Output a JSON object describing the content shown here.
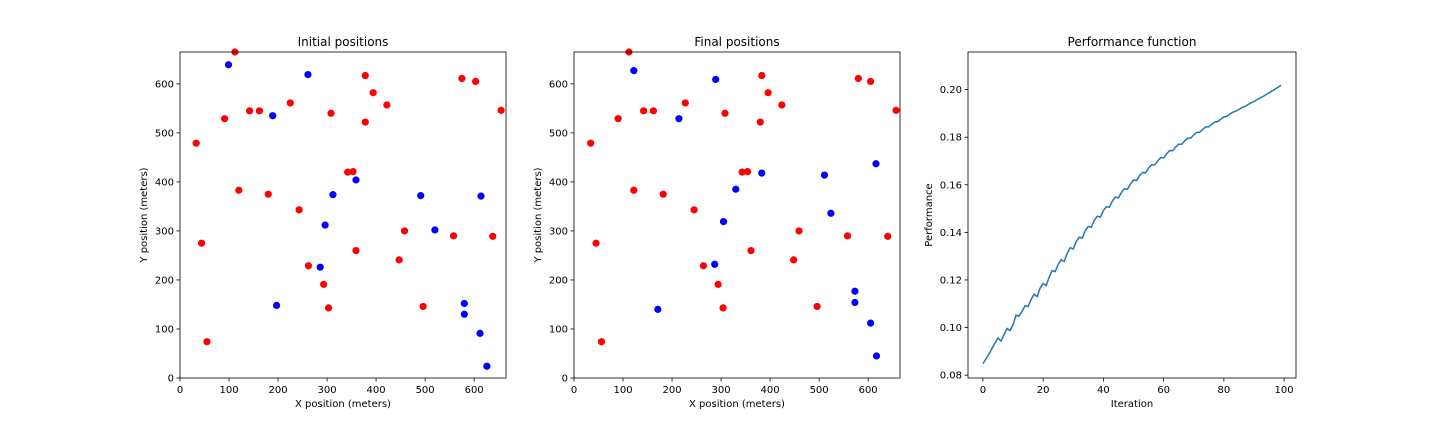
{
  "chart_data": [
    {
      "type": "scatter",
      "title": "Initial positions",
      "xlabel": "X position (meters)",
      "ylabel": "Y position (meters)",
      "xlim": [
        0,
        665
      ],
      "ylim": [
        0,
        665
      ],
      "xticks": [
        0,
        100,
        200,
        300,
        400,
        500,
        600
      ],
      "yticks": [
        0,
        100,
        200,
        300,
        400,
        500,
        600
      ],
      "grid": false,
      "series": [
        {
          "color": "#ff0000",
          "points": [
            [
              112,
              665
            ],
            [
              378,
              617
            ],
            [
              575,
              611
            ],
            [
              603,
              605
            ],
            [
              394,
              582
            ],
            [
              225,
              561
            ],
            [
              422,
              557
            ],
            [
              142,
              545
            ],
            [
              162,
              545
            ],
            [
              655,
              546
            ],
            [
              308,
              540
            ],
            [
              91,
              529
            ],
            [
              378,
              522
            ],
            [
              33,
              479
            ],
            [
              342,
              420
            ],
            [
              353,
              421
            ],
            [
              120,
              383
            ],
            [
              180,
              375
            ],
            [
              243,
              343
            ],
            [
              458,
              300
            ],
            [
              558,
              290
            ],
            [
              638,
              289
            ],
            [
              44,
              275
            ],
            [
              359,
              260
            ],
            [
              447,
              241
            ],
            [
              262,
              229
            ],
            [
              293,
              191
            ],
            [
              303,
              143
            ],
            [
              496,
              146
            ],
            [
              55,
              74
            ]
          ]
        },
        {
          "color": "#0000ff",
          "points": [
            [
              99,
              639
            ],
            [
              261,
              619
            ],
            [
              189,
              535
            ],
            [
              359,
              404
            ],
            [
              312,
              374
            ],
            [
              491,
              372
            ],
            [
              614,
              371
            ],
            [
              520,
              302
            ],
            [
              296,
              312
            ],
            [
              286,
              226
            ],
            [
              197,
              148
            ],
            [
              580,
              152
            ],
            [
              580,
              130
            ],
            [
              612,
              91
            ],
            [
              626,
              24
            ]
          ]
        }
      ]
    },
    {
      "type": "scatter",
      "title": "Final positions",
      "xlabel": "X position (meters)",
      "ylabel": "Y position (meters)",
      "xlim": [
        0,
        665
      ],
      "ylim": [
        0,
        665
      ],
      "xticks": [
        0,
        100,
        200,
        300,
        400,
        500,
        600
      ],
      "yticks": [
        0,
        100,
        200,
        300,
        400,
        500,
        600
      ],
      "grid": false,
      "series": [
        {
          "color": "#ff0000",
          "points": [
            [
              112,
              665
            ],
            [
              383,
              617
            ],
            [
              580,
              611
            ],
            [
              605,
              605
            ],
            [
              396,
              582
            ],
            [
              227,
              561
            ],
            [
              424,
              557
            ],
            [
              142,
              545
            ],
            [
              162,
              545
            ],
            [
              657,
              546
            ],
            [
              308,
              540
            ],
            [
              90,
              529
            ],
            [
              380,
              522
            ],
            [
              34,
              479
            ],
            [
              343,
              420
            ],
            [
              354,
              421
            ],
            [
              122,
              383
            ],
            [
              182,
              375
            ],
            [
              245,
              343
            ],
            [
              459,
              300
            ],
            [
              558,
              290
            ],
            [
              640,
              289
            ],
            [
              45,
              275
            ],
            [
              361,
              260
            ],
            [
              448,
              241
            ],
            [
              264,
              229
            ],
            [
              294,
              191
            ],
            [
              304,
              143
            ],
            [
              496,
              146
            ],
            [
              56,
              74
            ]
          ]
        },
        {
          "color": "#0000ff",
          "points": [
            [
              122,
              627
            ],
            [
              289,
              609
            ],
            [
              214,
              529
            ],
            [
              330,
              385
            ],
            [
              383,
              418
            ],
            [
              511,
              414
            ],
            [
              616,
              437
            ],
            [
              524,
              336
            ],
            [
              305,
              319
            ],
            [
              287,
              232
            ],
            [
              171,
              140
            ],
            [
              573,
              177
            ],
            [
              573,
              154
            ],
            [
              605,
              112
            ],
            [
              617,
              45
            ]
          ]
        }
      ]
    },
    {
      "type": "line",
      "title": "Performance function",
      "xlabel": "Iteration",
      "ylabel": "Performance",
      "xlim": [
        -4.95,
        103.95
      ],
      "ylim": [
        0.0788,
        0.2158
      ],
      "xticks": [
        0,
        20,
        40,
        60,
        80,
        100
      ],
      "yticks": [
        0.08,
        0.1,
        0.12,
        0.14,
        0.16,
        0.18,
        0.2
      ],
      "ytick_labels": [
        "0.08",
        "0.10",
        "0.12",
        "0.14",
        "0.16",
        "0.18",
        "0.20"
      ],
      "grid": false,
      "series": [
        {
          "color": "#1f77b4",
          "x": [
            0,
            1,
            2,
            3,
            4,
            5,
            6,
            7,
            8,
            9,
            10,
            11,
            12,
            13,
            14,
            15,
            16,
            17,
            18,
            19,
            20,
            21,
            22,
            23,
            24,
            25,
            26,
            27,
            28,
            29,
            30,
            31,
            32,
            33,
            34,
            35,
            36,
            37,
            38,
            39,
            40,
            41,
            42,
            43,
            44,
            45,
            46,
            47,
            48,
            49,
            50,
            51,
            52,
            53,
            54,
            55,
            56,
            57,
            58,
            59,
            60,
            61,
            62,
            63,
            64,
            65,
            66,
            67,
            68,
            69,
            70,
            71,
            72,
            73,
            74,
            75,
            76,
            77,
            78,
            79,
            80,
            81,
            82,
            83,
            84,
            85,
            86,
            87,
            88,
            89,
            90,
            91,
            92,
            93,
            94,
            95,
            96,
            97,
            98,
            99
          ],
          "y": [
            0.0848,
            0.0868,
            0.0888,
            0.0912,
            0.0934,
            0.0956,
            0.0943,
            0.097,
            0.0996,
            0.0987,
            0.1012,
            0.1052,
            0.1048,
            0.1068,
            0.1092,
            0.1088,
            0.1118,
            0.114,
            0.113,
            0.1166,
            0.1185,
            0.1176,
            0.1212,
            0.124,
            0.1235,
            0.1266,
            0.1285,
            0.1278,
            0.1312,
            0.1336,
            0.133,
            0.1362,
            0.138,
            0.1376,
            0.1408,
            0.1425,
            0.1421,
            0.1452,
            0.1468,
            0.1464,
            0.1492,
            0.1508,
            0.1505,
            0.1532,
            0.1548,
            0.1545,
            0.1568,
            0.1584,
            0.1581,
            0.1603,
            0.162,
            0.1618,
            0.1638,
            0.1652,
            0.165,
            0.167,
            0.1684,
            0.1683,
            0.17,
            0.1714,
            0.1713,
            0.173,
            0.1744,
            0.1743,
            0.1758,
            0.1771,
            0.177,
            0.1785,
            0.1796,
            0.1796,
            0.181,
            0.182,
            0.1821,
            0.1833,
            0.1843,
            0.1844,
            0.1855,
            0.1864,
            0.1866,
            0.1876,
            0.1885,
            0.1888,
            0.1897,
            0.1905,
            0.1909,
            0.1917,
            0.1924,
            0.1929,
            0.1937,
            0.1944,
            0.195,
            0.1958,
            0.1965,
            0.1971,
            0.1979,
            0.1986,
            0.1994,
            0.2002,
            0.201,
            0.2018
          ]
        }
      ]
    }
  ]
}
